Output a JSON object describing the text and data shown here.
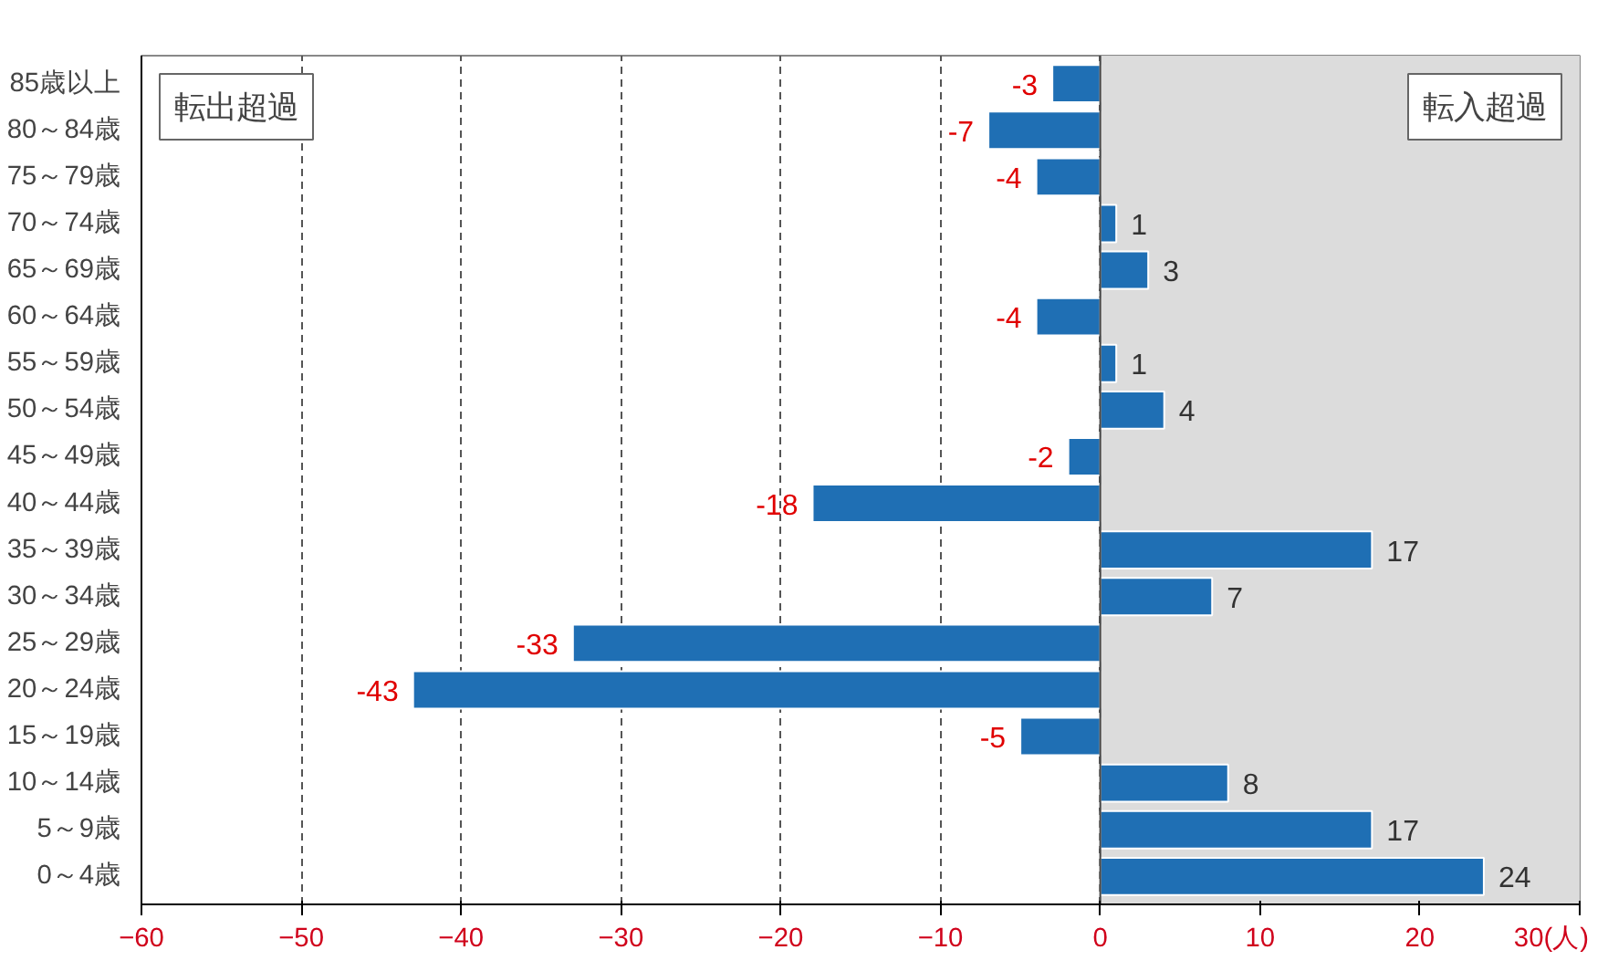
{
  "chart_data": {
    "type": "bar",
    "orientation": "horizontal",
    "categories": [
      "85歳以上",
      "80～84歳",
      "75～79歳",
      "70～74歳",
      "65～69歳",
      "60～64歳",
      "55～59歳",
      "50～54歳",
      "45～49歳",
      "40～44歳",
      "35～39歳",
      "30～34歳",
      "25～29歳",
      "20～24歳",
      "15～19歳",
      "10～14歳",
      "5～9歳",
      "0～4歳"
    ],
    "values": [
      -3,
      -7,
      -4,
      1,
      3,
      -4,
      1,
      4,
      -2,
      -18,
      17,
      7,
      -33,
      -43,
      -5,
      8,
      17,
      24
    ],
    "color": "#1f6fb4",
    "xlim": [
      -60,
      30
    ],
    "xticks": [
      -60,
      -50,
      -40,
      -30,
      -20,
      -10,
      0,
      10,
      20,
      {
        "value": 30,
        "label": "30(人)"
      }
    ],
    "grid": "x",
    "data_labels": true,
    "bands": [
      {
        "axis": "x",
        "from": 0,
        "to": 30,
        "label": "転入超過",
        "color": "#dcdcdc"
      }
    ],
    "annotations": [
      "転出超過"
    ]
  }
}
